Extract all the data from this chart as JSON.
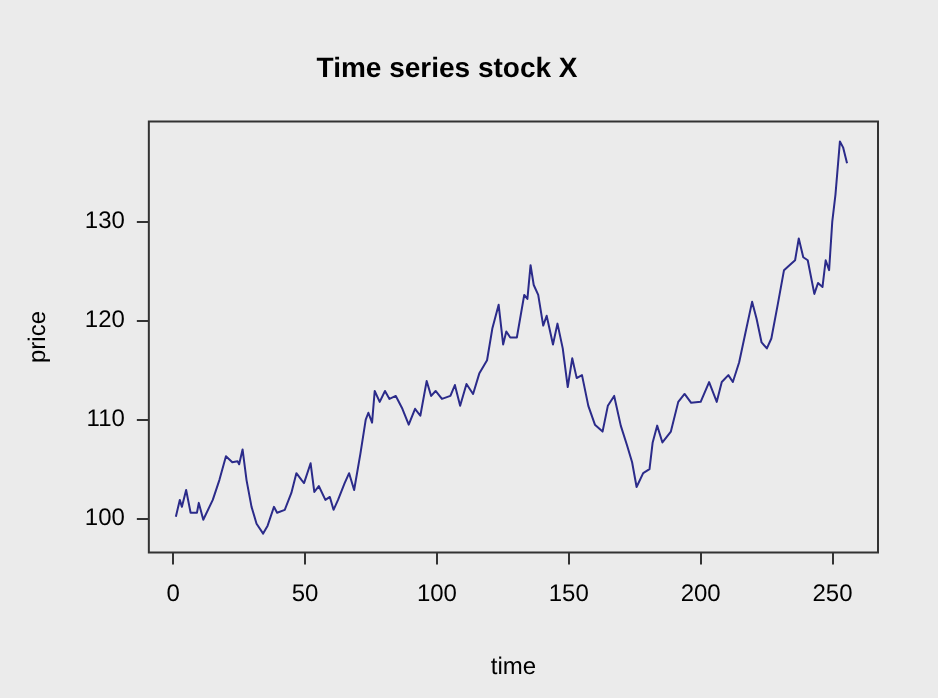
{
  "chart_data": {
    "type": "line",
    "title": "Time series stock X",
    "xlabel": "time",
    "ylabel": "price",
    "xlim": [
      -9.24,
      267.24
    ],
    "ylim": [
      96.6,
      140.1
    ],
    "xticks": [
      0,
      50,
      100,
      150,
      200,
      250
    ],
    "yticks": [
      100,
      110,
      120,
      130
    ],
    "grid": false,
    "legend": false,
    "marker": "none",
    "line_style": "solid",
    "series": [
      {
        "color": "#2b2b8a",
        "x": [
          1,
          2.5,
          3.3,
          4.9,
          6.6,
          9,
          9.7,
          11.4,
          15,
          17.5,
          20,
          22.4,
          24.4,
          25,
          26.3,
          27.8,
          29.7,
          31.6,
          34.1,
          35.8,
          38.2,
          39.4,
          42.3,
          44.8,
          46.7,
          48.7,
          49.6,
          52.1,
          53.5,
          55.2,
          57.7,
          59.4,
          60.8,
          62.5,
          65,
          66.7,
          68.6,
          71,
          73,
          74,
          75.4,
          76.4,
          78.3,
          80.3,
          82,
          84.4,
          86.9,
          89.3,
          91.7,
          93.7,
          96.1,
          97.8,
          99.5,
          101.9,
          105.1,
          106.8,
          108.8,
          111.2,
          113.7,
          116.1,
          119,
          121,
          123.4,
          125.1,
          126.3,
          127.8,
          130.3,
          133.1,
          134.3,
          135.5,
          136.7,
          138.4,
          140.3,
          141.6,
          144,
          145.7,
          147.7,
          149.6,
          151.3,
          153,
          155,
          157.4,
          159.9,
          162.8,
          164.8,
          167.2,
          169.7,
          172.1,
          174,
          175.7,
          178.2,
          180.6,
          181.8,
          183.5,
          185.5,
          188.7,
          191.5,
          193.9,
          196.4,
          200,
          203.2,
          206.1,
          208,
          210.5,
          212.2,
          214.6,
          217,
          219.5,
          221.2,
          223.1,
          225.1,
          226.8,
          229.2,
          231.6,
          234.1,
          235.8,
          237.2,
          238.9,
          240.6,
          243.1,
          244.5,
          246.2,
          247.4,
          248.7,
          249.9,
          251.1,
          252.8,
          254,
          255.5
        ],
        "values": [
          100.2,
          101.9,
          101.2,
          102.9,
          100.6,
          100.6,
          101.6,
          99.9,
          101.9,
          103.9,
          106.3,
          105.7,
          105.8,
          105.5,
          107.0,
          103.9,
          101.2,
          99.5,
          98.5,
          99.3,
          101.2,
          100.6,
          100.9,
          102.6,
          104.6,
          103.9,
          103.6,
          105.6,
          102.7,
          103.3,
          101.9,
          102.2,
          100.9,
          101.9,
          103.6,
          104.6,
          102.9,
          106.6,
          110.0,
          110.7,
          109.7,
          112.9,
          111.8,
          112.9,
          112.1,
          112.4,
          111.1,
          109.5,
          111.1,
          110.4,
          113.9,
          112.4,
          112.9,
          112.1,
          112.4,
          113.5,
          111.4,
          113.6,
          112.6,
          114.7,
          116.0,
          119.2,
          121.6,
          117.6,
          118.9,
          118.3,
          118.3,
          122.6,
          122.2,
          125.6,
          123.6,
          122.6,
          119.5,
          120.5,
          117.6,
          119.7,
          117.2,
          113.3,
          116.2,
          114.2,
          114.5,
          111.4,
          109.5,
          108.8,
          111.4,
          112.4,
          109.4,
          107.4,
          105.7,
          103.2,
          104.6,
          105.0,
          107.7,
          109.4,
          107.7,
          108.8,
          111.8,
          112.6,
          111.7,
          111.8,
          113.8,
          111.8,
          113.8,
          114.5,
          113.8,
          115.8,
          118.8,
          121.9,
          120.2,
          117.8,
          117.2,
          118.2,
          121.6,
          125.1,
          125.7,
          126.1,
          128.3,
          126.4,
          126.1,
          122.7,
          123.8,
          123.4,
          126.1,
          125.1,
          130.0,
          132.7,
          138.1,
          137.5,
          135.9
        ]
      }
    ]
  }
}
